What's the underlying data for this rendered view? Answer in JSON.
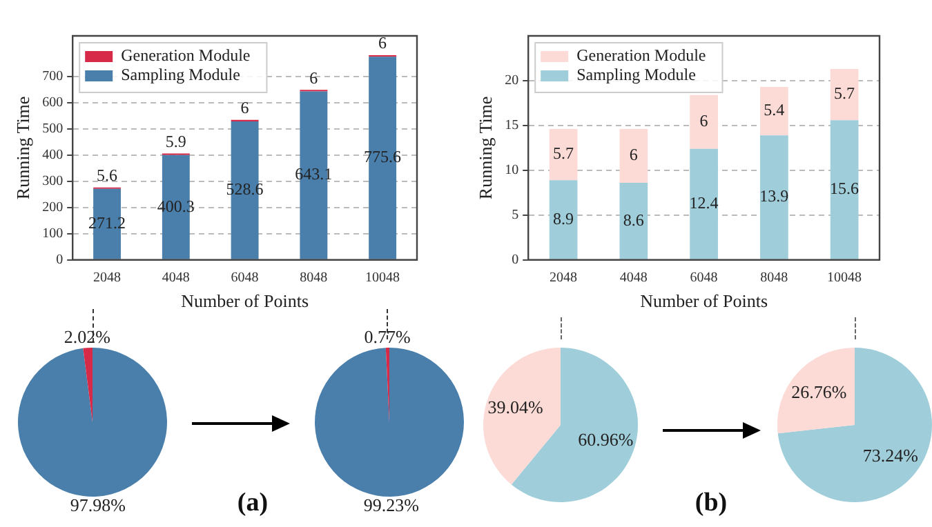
{
  "chart_data": [
    {
      "type": "bar",
      "xlabel": "Number of Points",
      "ylabel": "Running Time",
      "categories": [
        "2048",
        "4048",
        "6048",
        "8048",
        "10048"
      ],
      "stacked": true,
      "series": [
        {
          "name": "Sampling Module",
          "color": "#4a7fab",
          "values": [
            271.2,
            400.3,
            528.6,
            643.1,
            775.6
          ]
        },
        {
          "name": "Generation Module",
          "color": "#d62a48",
          "values": [
            5.6,
            5.9,
            6,
            6,
            6
          ]
        }
      ],
      "ylim": [
        0,
        855
      ],
      "yticks": [
        0,
        100,
        200,
        300,
        400,
        500,
        600,
        700
      ],
      "grid": "y",
      "legend": "top left",
      "data_labels": true,
      "annotations": [
        "(a)"
      ]
    },
    {
      "type": "bar",
      "xlabel": "Number of Points",
      "ylabel": "Running Time",
      "categories": [
        "2048",
        "4048",
        "6048",
        "8048",
        "10048"
      ],
      "stacked": true,
      "series": [
        {
          "name": "Sampling Module",
          "color": "#9fcdda",
          "values": [
            8.9,
            8.6,
            12.4,
            13.9,
            15.6
          ]
        },
        {
          "name": "Generation Module",
          "color": "#fcdad6",
          "values": [
            5.7,
            6,
            6,
            5.4,
            5.7
          ]
        }
      ],
      "ylim": [
        0,
        25
      ],
      "yticks": [
        0,
        5,
        10,
        15,
        20
      ],
      "grid": "y",
      "legend": "top left",
      "data_labels": true,
      "annotations": [
        "(b)"
      ]
    },
    {
      "type": "pie",
      "categories": [
        null,
        null
      ],
      "values": [
        97.98,
        2.02
      ],
      "colors": [
        "#4a7fab",
        "#d62a48"
      ],
      "value_labels": [
        "97.98%",
        "2.02%"
      ]
    },
    {
      "type": "pie",
      "categories": [
        null,
        null
      ],
      "values": [
        99.23,
        0.77
      ],
      "colors": [
        "#4a7fab",
        "#d62a48"
      ],
      "value_labels": [
        "99.23%",
        "0.77%"
      ]
    },
    {
      "type": "pie",
      "categories": [
        null,
        null
      ],
      "values": [
        60.96,
        39.04
      ],
      "colors": [
        "#9fcdda",
        "#fcdad6"
      ],
      "value_labels": [
        "60.96%",
        "39.04%"
      ]
    },
    {
      "type": "pie",
      "categories": [
        null,
        null
      ],
      "values": [
        73.24,
        26.76
      ],
      "colors": [
        "#9fcdda",
        "#fcdad6"
      ],
      "value_labels": [
        "73.24%",
        "26.76%"
      ]
    }
  ]
}
